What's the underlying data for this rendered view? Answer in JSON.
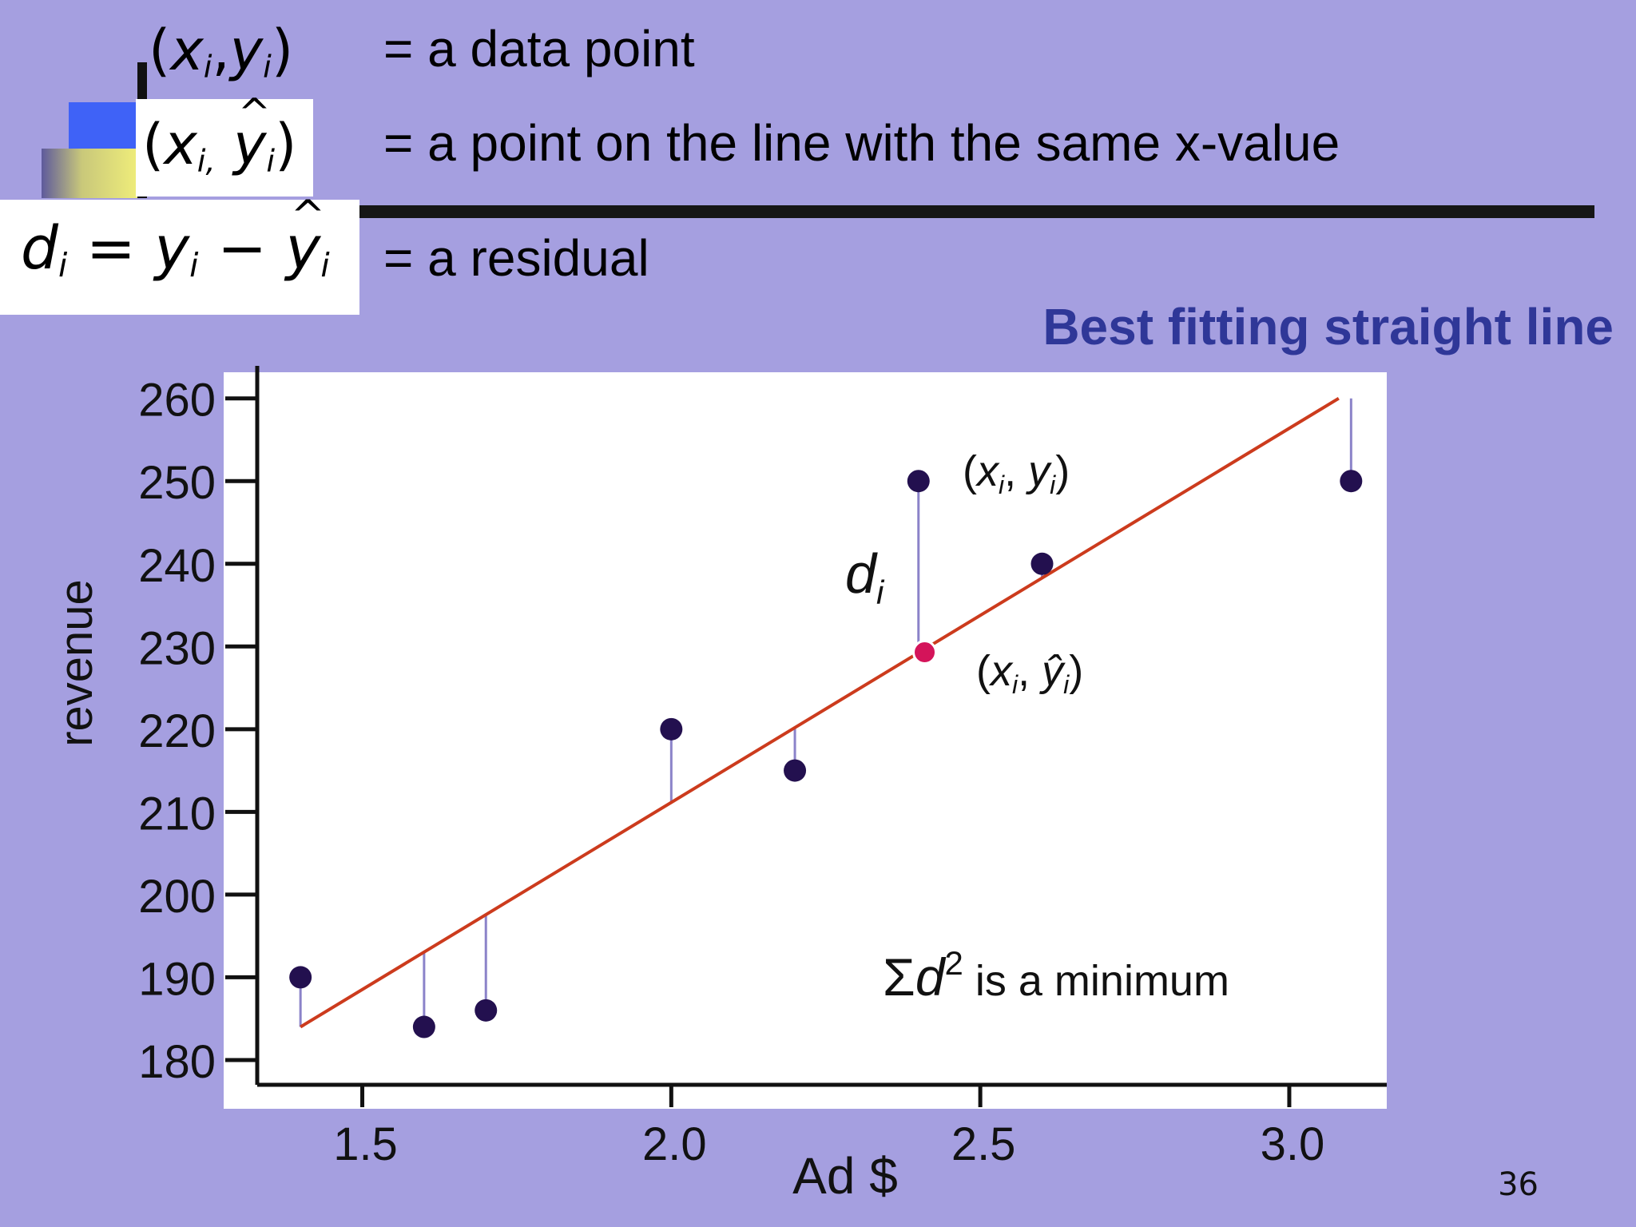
{
  "legend_rows": {
    "row1": {
      "formula_label": "(xi,yi)",
      "desc": "= a data point"
    },
    "row2": {
      "formula_label": "(xi, ŷi)",
      "desc": "= a point on the line with the same x-value"
    },
    "row3": {
      "formula_label": "di = yi − ŷi",
      "desc": "= a residual"
    }
  },
  "page_number": "36",
  "colors": {
    "background": "#a59fe0",
    "subtitle": "#2f3798",
    "fit_line": "#cc3b1d",
    "points": "#23104f",
    "highlight_point": "#d4145a",
    "residual_line": "#8b83c9"
  },
  "chart_data": {
    "type": "scatter",
    "title": "Best fitting straight line",
    "xlabel": "Ad $",
    "ylabel": "revenue",
    "xlim": [
      1.33,
      3.15
    ],
    "ylim": [
      177,
      262
    ],
    "xticks": [
      1.5,
      2.0,
      2.5,
      3.0
    ],
    "xtick_labels": [
      "1.5",
      "2.0",
      "2.5",
      "3.0"
    ],
    "yticks": [
      180,
      190,
      200,
      210,
      220,
      230,
      240,
      250,
      260
    ],
    "ytick_labels": [
      "180",
      "190",
      "200",
      "210",
      "220",
      "230",
      "240",
      "250",
      "260"
    ],
    "grid": false,
    "points": [
      {
        "x": 1.4,
        "y": 190
      },
      {
        "x": 1.6,
        "y": 184
      },
      {
        "x": 1.7,
        "y": 186
      },
      {
        "x": 2.0,
        "y": 220
      },
      {
        "x": 2.2,
        "y": 215
      },
      {
        "x": 2.4,
        "y": 250
      },
      {
        "x": 2.6,
        "y": 240
      },
      {
        "x": 3.1,
        "y": 250
      }
    ],
    "fit_line": {
      "x": [
        1.4,
        3.08
      ],
      "y": [
        184,
        260
      ]
    },
    "highlight": {
      "x": 2.41,
      "y": 229.3
    },
    "annotations": {
      "data_point": "(xi, yi)",
      "fitted_point": "(xi, ŷi)",
      "residual": "di",
      "criterion": "Σd² is a minimum"
    }
  }
}
